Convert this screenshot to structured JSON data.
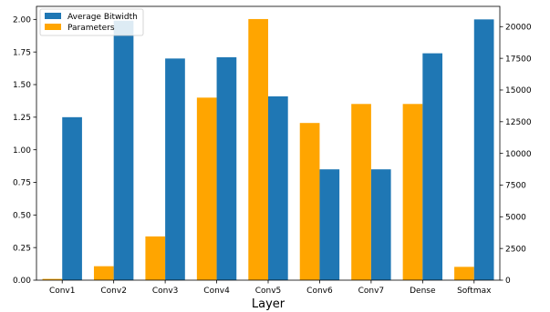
{
  "chart_data": {
    "type": "bar",
    "xlabel": "Layer",
    "categories": [
      "Conv1",
      "Conv2",
      "Conv3",
      "Conv4",
      "Conv5",
      "Conv6",
      "Conv7",
      "Dense",
      "Softmax"
    ],
    "series": [
      {
        "name": "Parameters",
        "axis": "right",
        "color": "#ffa500",
        "values": [
          100,
          1100,
          3450,
          14400,
          20600,
          12400,
          13900,
          13900,
          1050
        ]
      },
      {
        "name": "Average Bitwidth",
        "axis": "left",
        "color": "#1f77b4",
        "values": [
          1.25,
          1.99,
          1.7,
          1.71,
          1.41,
          0.85,
          0.85,
          1.74,
          2.0
        ]
      }
    ],
    "y_left": {
      "lim": [
        0,
        2.1
      ],
      "ticks": [
        "0.00",
        "0.25",
        "0.50",
        "0.75",
        "1.00",
        "1.25",
        "1.50",
        "1.75",
        "2.00"
      ]
    },
    "y_right": {
      "lim": [
        0,
        21600
      ],
      "ticks": [
        "0",
        "2500",
        "5000",
        "7500",
        "10000",
        "12500",
        "15000",
        "17500",
        "20000"
      ]
    },
    "legend": {
      "placement": "top-left",
      "entries": [
        "Average Bitwidth",
        "Parameters"
      ]
    },
    "grid": false
  }
}
